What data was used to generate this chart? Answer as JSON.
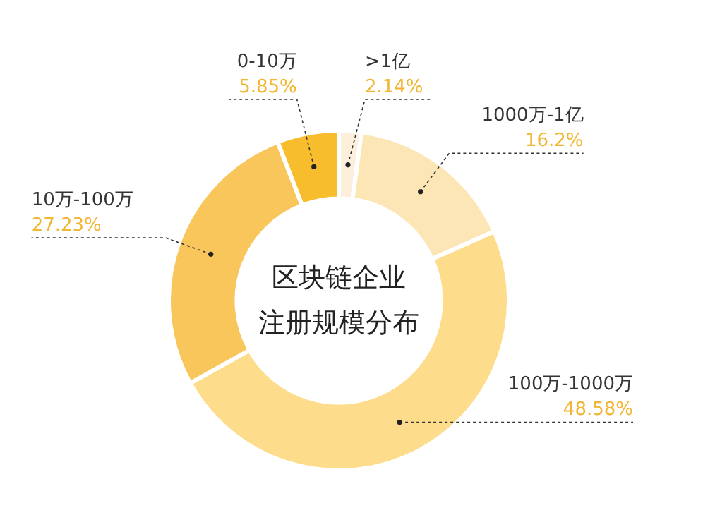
{
  "chart_data": {
    "type": "donut",
    "title": "区块链企业注册规模分布",
    "categories": [
      ">1亿",
      "1000万-1亿",
      "100万-1000万",
      "10万-100万",
      "0-10万"
    ],
    "values": [
      2.14,
      16.2,
      48.58,
      27.23,
      5.85
    ],
    "value_labels": [
      "2.14%",
      "16.2%",
      "48.58%",
      "27.23%",
      "5.85%"
    ],
    "colors": [
      "#fcefdc",
      "#fde6b6",
      "#fddc8c",
      "#f8c65a",
      "#f7bd2c"
    ],
    "legend": false
  }
}
